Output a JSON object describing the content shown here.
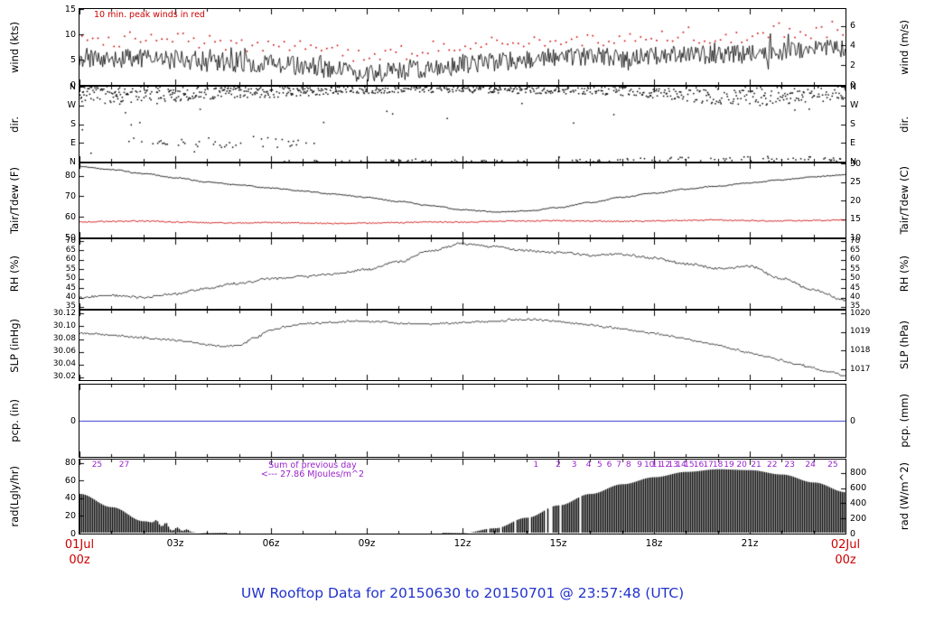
{
  "figure": {
    "caption": "UW Rooftop Data for 20150630  to  20150701 @ 23:57:48  (UTC)",
    "caption_color": "#2233cc",
    "background": "#ffffff"
  },
  "x_axis": {
    "start": {
      "line1": "01Jul",
      "line2": "00z",
      "color": "#cc0000"
    },
    "end": {
      "line1": "02Jul",
      "line2": "00z",
      "color": "#cc0000"
    },
    "ticks": [
      {
        "hour": 3,
        "label": "03z"
      },
      {
        "hour": 6,
        "label": "06z"
      },
      {
        "hour": 9,
        "label": "09z"
      },
      {
        "hour": 12,
        "label": "12z"
      },
      {
        "hour": 15,
        "label": "15z"
      },
      {
        "hour": 18,
        "label": "18z"
      },
      {
        "hour": 21,
        "label": "21z"
      }
    ],
    "hours_range": [
      0,
      24
    ]
  },
  "chart_data": {
    "type": "multi-panel-timeseries",
    "x_hours": [
      0,
      24
    ],
    "panels": [
      {
        "id": "wind",
        "type": "line+points",
        "left_label": "wind (kts)",
        "right_label": "wind (m/s)",
        "ylim": [
          0,
          15
        ],
        "left_ticks": [
          {
            "v": 15,
            "label": "15"
          },
          {
            "v": 10,
            "label": "10"
          },
          {
            "v": 5,
            "label": "5"
          },
          {
            "v": 0,
            "label": "0"
          }
        ],
        "right_ticks": [
          {
            "v": 11.66,
            "label": "6"
          },
          {
            "v": 7.78,
            "label": "4"
          },
          {
            "v": 3.89,
            "label": "2"
          },
          {
            "v": 0,
            "label": "0"
          }
        ],
        "note": {
          "text": "10 min. peak winds in red",
          "color": "#cc0000"
        },
        "series": {
          "mean_kts_hourly": [
            5.2,
            5.0,
            5.4,
            5.0,
            4.8,
            4.4,
            4.2,
            3.8,
            3.0,
            2.2,
            2.6,
            3.4,
            4.2,
            4.4,
            5.2,
            5.4,
            5.6,
            5.2,
            5.6,
            6.2,
            5.8,
            6.2,
            6.6,
            7.0,
            7.2
          ],
          "noise_kts": 1.9,
          "gust_offset_kts": 2.2,
          "line_color": "#000000",
          "peak_color": "#cc0000"
        }
      },
      {
        "id": "dir",
        "type": "scatter",
        "left_label": "dir.",
        "right_label": "dir.",
        "ylim": [
          0,
          360
        ],
        "left_ticks": [
          {
            "v": 360,
            "label": "N"
          },
          {
            "v": 270,
            "label": "W"
          },
          {
            "v": 180,
            "label": "S"
          },
          {
            "v": 90,
            "label": "E"
          },
          {
            "v": 0,
            "label": "N"
          }
        ],
        "right_ticks": [
          {
            "v": 360,
            "label": "N"
          },
          {
            "v": 270,
            "label": "W"
          },
          {
            "v": 180,
            "label": "S"
          },
          {
            "v": 90,
            "label": "E"
          },
          {
            "v": 0,
            "label": "N"
          }
        ],
        "series": {
          "center_deg_hourly": [
            320,
            315,
            320,
            325,
            330,
            335,
            335,
            340,
            345,
            345,
            350,
            350,
            350,
            348,
            345,
            345,
            348,
            345,
            340,
            335,
            330,
            325,
            330,
            335,
            340
          ],
          "spread_deg_hourly": [
            40,
            45,
            40,
            35,
            30,
            28,
            26,
            24,
            22,
            20,
            18,
            18,
            18,
            18,
            18,
            20,
            24,
            30,
            38,
            48,
            55,
            60,
            55,
            50,
            45
          ],
          "east_cluster": {
            "from_hour": 1.5,
            "to_hour": 7.5,
            "center_deg": 95,
            "spread_deg": 28
          },
          "dot_color": "#000000"
        }
      },
      {
        "id": "temp",
        "type": "line",
        "left_label": "Tair/Tdew (F)",
        "right_label": "Tair/Tdew (C)",
        "ylim": [
          50,
          86
        ],
        "left_ticks": [
          {
            "v": 80,
            "label": "80"
          },
          {
            "v": 70,
            "label": "70"
          },
          {
            "v": 60,
            "label": "60"
          },
          {
            "v": 50,
            "label": "50"
          }
        ],
        "right_ticks": [
          {
            "v": 86,
            "label": "30"
          },
          {
            "v": 77,
            "label": "25"
          },
          {
            "v": 68,
            "label": "20"
          },
          {
            "v": 59,
            "label": "15"
          },
          {
            "v": 50,
            "label": "10"
          }
        ],
        "series": {
          "tair_f_hourly": [
            84.5,
            83,
            81,
            79,
            77,
            75.5,
            74,
            72.5,
            71,
            69.5,
            67.5,
            65.5,
            63.5,
            62.5,
            62.8,
            64.5,
            67,
            69.5,
            71.5,
            73.5,
            75,
            76.5,
            78,
            79.5,
            80.5
          ],
          "tdew_f_hourly": [
            57.5,
            57.8,
            58,
            57.5,
            57.2,
            57,
            57.3,
            57,
            56.8,
            57,
            57.2,
            57.5,
            57.4,
            57.8,
            58,
            58.2,
            58,
            57.8,
            58,
            58.3,
            58.5,
            58.2,
            58,
            58.3,
            58.5
          ],
          "tair_color": "#000000",
          "tdew_color": "#cc0000"
        }
      },
      {
        "id": "rh",
        "type": "line",
        "left_label": "RH (%)",
        "right_label": "RH (%)",
        "ylim": [
          34,
          71
        ],
        "left_ticks": [
          {
            "v": 70,
            "label": "70"
          },
          {
            "v": 65,
            "label": "65"
          },
          {
            "v": 60,
            "label": "60"
          },
          {
            "v": 55,
            "label": "55"
          },
          {
            "v": 50,
            "label": "50"
          },
          {
            "v": 45,
            "label": "45"
          },
          {
            "v": 40,
            "label": "40"
          },
          {
            "v": 35,
            "label": "35"
          }
        ],
        "right_ticks": [
          {
            "v": 70,
            "label": "70"
          },
          {
            "v": 65,
            "label": "65"
          },
          {
            "v": 60,
            "label": "60"
          },
          {
            "v": 55,
            "label": "55"
          },
          {
            "v": 50,
            "label": "50"
          },
          {
            "v": 45,
            "label": "45"
          },
          {
            "v": 40,
            "label": "40"
          },
          {
            "v": 35,
            "label": "35"
          }
        ],
        "series": {
          "rh_pct_hourly": [
            40,
            41,
            40,
            42,
            45,
            47.5,
            50,
            51,
            52.5,
            55,
            59,
            65,
            68.5,
            67,
            65,
            64,
            62.5,
            62.8,
            61,
            58,
            55.5,
            56.5,
            50,
            44,
            38.5
          ],
          "color": "#000000"
        }
      },
      {
        "id": "slp",
        "type": "line",
        "left_label": "SLP (inHg)",
        "right_label": "SLP (hPa)",
        "ylim": [
          30.015,
          30.125
        ],
        "left_ticks": [
          {
            "v": 30.12,
            "label": "30.12"
          },
          {
            "v": 30.1,
            "label": "30.10"
          },
          {
            "v": 30.08,
            "label": "30.08"
          },
          {
            "v": 30.06,
            "label": "30.06"
          },
          {
            "v": 30.04,
            "label": "30.04"
          },
          {
            "v": 30.02,
            "label": "30.02"
          }
        ],
        "right_ticks": [
          {
            "v": 30.1206,
            "label": "1020"
          },
          {
            "v": 30.091,
            "label": "1019"
          },
          {
            "v": 30.0615,
            "label": "1018"
          },
          {
            "v": 30.032,
            "label": "1017"
          }
        ],
        "series": {
          "slp_inhg_halfhourly": [
            30.09,
            30.088,
            30.086,
            30.084,
            30.082,
            30.08,
            30.078,
            30.075,
            30.071,
            30.068,
            30.07,
            30.082,
            30.094,
            30.1,
            30.104,
            30.106,
            30.107,
            30.108,
            30.108,
            30.107,
            30.105,
            30.104,
            30.104,
            30.105,
            30.106,
            30.107,
            30.108,
            30.11,
            30.111,
            30.11,
            30.108,
            30.105,
            30.102,
            30.099,
            30.096,
            30.092,
            30.089,
            30.085,
            30.08,
            30.075,
            30.07,
            30.064,
            30.058,
            30.052,
            30.046,
            30.04,
            30.034,
            30.028,
            30.022
          ],
          "color": "#000000"
        }
      },
      {
        "id": "pcp",
        "type": "line",
        "left_label": "pcp. (in)",
        "right_label": "pcp. (mm)",
        "ylim": [
          -0.025,
          0.025
        ],
        "left_ticks": [
          {
            "v": 0,
            "label": "0"
          }
        ],
        "right_ticks": [
          {
            "v": 0,
            "label": "0"
          }
        ],
        "series": {
          "pcp_in_constant": 0,
          "color": "#3333cc"
        }
      },
      {
        "id": "rad",
        "type": "filled-impulses",
        "left_label": "rad(Lgly/hr)",
        "right_label": "rad (W/m^2)",
        "ylim": [
          0,
          84
        ],
        "left_ticks": [
          {
            "v": 80,
            "label": "80"
          },
          {
            "v": 60,
            "label": "60"
          },
          {
            "v": 40,
            "label": "40"
          },
          {
            "v": 20,
            "label": "20"
          },
          {
            "v": 0,
            "label": "0"
          }
        ],
        "right_ticks": [
          {
            "v": 68.8,
            "label": "800"
          },
          {
            "v": 51.6,
            "label": "600"
          },
          {
            "v": 34.4,
            "label": "400"
          },
          {
            "v": 17.2,
            "label": "200"
          },
          {
            "v": 0,
            "label": "0"
          }
        ],
        "series": {
          "rad_lgly_hourly": [
            45,
            30,
            14,
            3,
            0.5,
            0,
            0,
            0,
            0,
            0,
            0,
            0,
            0.5,
            6,
            18,
            32,
            45,
            56,
            64,
            70,
            73,
            72,
            67,
            58,
            47
          ],
          "spikes": [
            {
              "hour": 2.4,
              "value": 5
            },
            {
              "hour": 2.7,
              "value": 7
            },
            {
              "hour": 3.05,
              "value": 4
            },
            {
              "hour": 3.35,
              "value": 2.5
            }
          ],
          "fill_color": "#000000"
        },
        "annotations": {
          "color": "#9922cc",
          "sum_label": {
            "line1": "Sum of previous day",
            "line2": "<--- 27.86 MJoules/m^2",
            "hour": 7.3
          },
          "mj_markers": [
            {
              "label": "25",
              "hour": 0.55
            },
            {
              "label": "27",
              "hour": 1.4
            },
            {
              "label": "1",
              "hour": 14.3
            },
            {
              "label": "2",
              "hour": 15.0
            },
            {
              "label": "3",
              "hour": 15.5
            },
            {
              "label": "4",
              "hour": 15.95
            },
            {
              "label": "5",
              "hour": 16.3
            },
            {
              "label": "6",
              "hour": 16.6
            },
            {
              "label": "7",
              "hour": 16.9
            },
            {
              "label": "8",
              "hour": 17.2
            },
            {
              "label": "9",
              "hour": 17.55
            },
            {
              "label": "10",
              "hour": 17.85
            },
            {
              "label": "11",
              "hour": 18.1
            },
            {
              "label": "12",
              "hour": 18.35
            },
            {
              "label": "13",
              "hour": 18.6
            },
            {
              "label": "14",
              "hour": 18.85
            },
            {
              "label": "15",
              "hour": 19.1
            },
            {
              "label": "16",
              "hour": 19.4
            },
            {
              "label": "17",
              "hour": 19.7
            },
            {
              "label": "18",
              "hour": 20.0
            },
            {
              "label": "19",
              "hour": 20.35
            },
            {
              "label": "20",
              "hour": 20.75
            },
            {
              "label": "21",
              "hour": 21.2
            },
            {
              "label": "22",
              "hour": 21.7
            },
            {
              "label": "23",
              "hour": 22.25
            },
            {
              "label": "24",
              "hour": 22.9
            },
            {
              "label": "25",
              "hour": 23.6
            }
          ]
        }
      }
    ]
  }
}
